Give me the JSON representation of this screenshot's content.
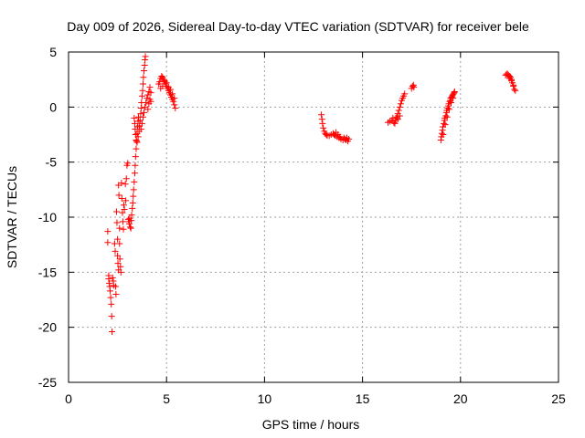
{
  "chart_data": {
    "type": "scatter",
    "title": "Day 009 of 2026, Sidereal Day-to-day VTEC variation (SDTVAR) for receiver bele",
    "xlabel": "GPS time / hours",
    "ylabel": "SDTVAR / TECUs",
    "xlim": [
      0,
      25
    ],
    "ylim": [
      -25,
      5
    ],
    "xticks": [
      0,
      5,
      10,
      15,
      20,
      25
    ],
    "yticks": [
      -25,
      -20,
      -15,
      -10,
      -5,
      0,
      5
    ],
    "xtick_labels": [
      "0",
      "5",
      "10",
      "15",
      "20",
      "25"
    ],
    "ytick_labels": [
      "-25",
      "-20",
      "-15",
      "-10",
      "-5",
      "0",
      "5"
    ],
    "grid": true,
    "marker": "+",
    "colors": {
      "series": "#ff0000",
      "grid": "#a0a0a0",
      "axis": "#000000"
    },
    "series": [
      {
        "name": "SDTVAR",
        "points": [
          [
            2.0,
            -11.3
          ],
          [
            2.0,
            -12.3
          ],
          [
            2.05,
            -15.3
          ],
          [
            2.05,
            -15.6
          ],
          [
            2.08,
            -16.0
          ],
          [
            2.1,
            -16.3
          ],
          [
            2.12,
            -16.7
          ],
          [
            2.15,
            -17.3
          ],
          [
            2.18,
            -17.9
          ],
          [
            2.2,
            -19.0
          ],
          [
            2.22,
            -20.4
          ],
          [
            2.25,
            -15.5
          ],
          [
            2.28,
            -15.8
          ],
          [
            2.3,
            -16.2
          ],
          [
            2.35,
            -12.4
          ],
          [
            2.38,
            -13.1
          ],
          [
            2.4,
            -16.3
          ],
          [
            2.42,
            -17.0
          ],
          [
            2.45,
            -9.5
          ],
          [
            2.47,
            -10.5
          ],
          [
            2.5,
            -12.0
          ],
          [
            2.5,
            -13.5
          ],
          [
            2.52,
            -14.2
          ],
          [
            2.55,
            -14.8
          ],
          [
            2.55,
            -7.1
          ],
          [
            2.57,
            -8.0
          ],
          [
            2.6,
            -11.0
          ],
          [
            2.6,
            -12.4
          ],
          [
            2.62,
            -13.8
          ],
          [
            2.65,
            -14.5
          ],
          [
            2.67,
            -15.0
          ],
          [
            2.7,
            -6.9
          ],
          [
            2.72,
            -8.3
          ],
          [
            2.75,
            -9.6
          ],
          [
            2.77,
            -10.4
          ],
          [
            2.8,
            -11.1
          ],
          [
            2.82,
            -8.9
          ],
          [
            2.85,
            -9.3
          ],
          [
            2.9,
            -7.0
          ],
          [
            2.92,
            -8.5
          ],
          [
            2.95,
            -6.5
          ],
          [
            2.98,
            -5.3
          ],
          [
            3.02,
            -5.1
          ],
          [
            3.05,
            -10.2
          ],
          [
            3.08,
            -10.4
          ],
          [
            3.1,
            -10.6
          ],
          [
            3.12,
            -10.1
          ],
          [
            3.15,
            -10.9
          ],
          [
            3.18,
            -11.0
          ],
          [
            3.2,
            -10.3
          ],
          [
            3.22,
            -9.8
          ],
          [
            3.25,
            -9.2
          ],
          [
            3.28,
            -8.7
          ],
          [
            3.3,
            -8.1
          ],
          [
            3.32,
            -7.5
          ],
          [
            3.35,
            -6.8
          ],
          [
            3.38,
            -6.0
          ],
          [
            3.4,
            -5.3
          ],
          [
            3.42,
            -4.5
          ],
          [
            3.45,
            -3.8
          ],
          [
            3.47,
            -3.1
          ],
          [
            3.5,
            -2.4
          ],
          [
            3.52,
            -1.8
          ],
          [
            3.55,
            -1.3
          ],
          [
            3.57,
            -0.9
          ],
          [
            3.35,
            -1.0
          ],
          [
            3.38,
            -1.5
          ],
          [
            3.4,
            -2.0
          ],
          [
            3.42,
            -2.5
          ],
          [
            3.45,
            -3.0
          ],
          [
            3.5,
            -3.2
          ],
          [
            3.55,
            -2.7
          ],
          [
            3.6,
            -2.2
          ],
          [
            3.62,
            -1.7
          ],
          [
            3.65,
            -1.2
          ],
          [
            3.68,
            -0.6
          ],
          [
            3.7,
            -0.1
          ],
          [
            3.72,
            0.4
          ],
          [
            3.75,
            1.0
          ],
          [
            3.78,
            1.5
          ],
          [
            3.8,
            2.1
          ],
          [
            3.82,
            2.7
          ],
          [
            3.85,
            3.3
          ],
          [
            3.88,
            3.8
          ],
          [
            3.9,
            4.3
          ],
          [
            3.92,
            4.6
          ],
          [
            3.7,
            -2.0
          ],
          [
            3.75,
            -1.5
          ],
          [
            3.8,
            -0.9
          ],
          [
            3.85,
            -0.5
          ],
          [
            3.9,
            0.0
          ],
          [
            3.95,
            0.4
          ],
          [
            4.0,
            0.8
          ],
          [
            4.05,
            1.1
          ],
          [
            4.1,
            1.4
          ],
          [
            4.15,
            1.8
          ],
          [
            4.2,
            1.3
          ],
          [
            4.05,
            -0.2
          ],
          [
            4.1,
            0.3
          ],
          [
            4.15,
            0.7
          ],
          [
            4.2,
            0.5
          ],
          [
            4.6,
            2.1
          ],
          [
            4.65,
            2.3
          ],
          [
            4.7,
            2.6
          ],
          [
            4.75,
            2.8
          ],
          [
            4.8,
            2.7
          ],
          [
            4.85,
            2.5
          ],
          [
            4.9,
            2.3
          ],
          [
            4.95,
            2.1
          ],
          [
            5.0,
            1.9
          ],
          [
            5.05,
            1.7
          ],
          [
            5.1,
            1.5
          ],
          [
            5.15,
            1.3
          ],
          [
            5.2,
            1.1
          ],
          [
            5.25,
            0.9
          ],
          [
            5.3,
            0.7
          ],
          [
            5.35,
            0.5
          ],
          [
            5.4,
            0.2
          ],
          [
            5.45,
            -0.1
          ],
          [
            4.7,
            1.7
          ],
          [
            4.8,
            1.9
          ],
          [
            4.9,
            2.4
          ],
          [
            5.0,
            2.2
          ],
          [
            5.1,
            1.8
          ],
          [
            5.2,
            1.6
          ],
          [
            5.3,
            1.2
          ],
          [
            5.4,
            0.8
          ],
          [
            12.9,
            -0.7
          ],
          [
            12.93,
            -1.1
          ],
          [
            12.96,
            -1.5
          ],
          [
            13.0,
            -1.9
          ],
          [
            13.05,
            -2.2
          ],
          [
            13.1,
            -2.4
          ],
          [
            13.15,
            -2.5
          ],
          [
            13.2,
            -2.6
          ],
          [
            13.3,
            -2.6
          ],
          [
            13.4,
            -2.5
          ],
          [
            13.5,
            -2.4
          ],
          [
            13.55,
            -2.5
          ],
          [
            13.6,
            -2.6
          ],
          [
            13.7,
            -2.7
          ],
          [
            13.8,
            -2.8
          ],
          [
            13.9,
            -2.9
          ],
          [
            14.0,
            -3.0
          ],
          [
            14.1,
            -2.9
          ],
          [
            14.2,
            -2.8
          ],
          [
            14.3,
            -2.9
          ],
          [
            13.65,
            -2.3
          ],
          [
            13.75,
            -2.5
          ],
          [
            13.85,
            -2.7
          ],
          [
            14.05,
            -2.8
          ],
          [
            14.15,
            -3.0
          ],
          [
            14.25,
            -3.1
          ],
          [
            16.3,
            -1.4
          ],
          [
            16.4,
            -1.3
          ],
          [
            16.5,
            -1.2
          ],
          [
            16.55,
            -1.0
          ],
          [
            16.6,
            -1.4
          ],
          [
            16.65,
            -1.5
          ],
          [
            16.7,
            -1.2
          ],
          [
            16.75,
            -0.9
          ],
          [
            16.8,
            -0.6
          ],
          [
            16.85,
            -0.3
          ],
          [
            16.9,
            0.0
          ],
          [
            16.95,
            0.3
          ],
          [
            17.0,
            0.6
          ],
          [
            17.05,
            0.8
          ],
          [
            17.1,
            1.0
          ],
          [
            17.15,
            1.2
          ],
          [
            16.7,
            -1.0
          ],
          [
            16.8,
            -1.1
          ],
          [
            16.9,
            -0.8
          ],
          [
            17.5,
            1.7
          ],
          [
            17.55,
            1.9
          ],
          [
            17.6,
            2.0
          ],
          [
            17.62,
            1.8
          ],
          [
            19.0,
            -3.0
          ],
          [
            19.02,
            -2.7
          ],
          [
            19.05,
            -2.4
          ],
          [
            19.08,
            -2.1
          ],
          [
            19.1,
            -1.8
          ],
          [
            19.12,
            -2.5
          ],
          [
            19.15,
            -1.5
          ],
          [
            19.18,
            -1.2
          ],
          [
            19.2,
            -1.0
          ],
          [
            19.22,
            -1.6
          ],
          [
            19.25,
            -0.8
          ],
          [
            19.28,
            -0.5
          ],
          [
            19.3,
            -0.3
          ],
          [
            19.32,
            -0.9
          ],
          [
            19.35,
            -0.1
          ],
          [
            19.38,
            0.1
          ],
          [
            19.4,
            0.3
          ],
          [
            19.42,
            -0.2
          ],
          [
            19.45,
            0.5
          ],
          [
            19.48,
            0.6
          ],
          [
            19.5,
            0.8
          ],
          [
            19.52,
            0.4
          ],
          [
            19.55,
            0.9
          ],
          [
            19.58,
            1.0
          ],
          [
            19.6,
            1.1
          ],
          [
            19.62,
            0.8
          ],
          [
            19.65,
            1.2
          ],
          [
            19.68,
            1.3
          ],
          [
            19.7,
            1.4
          ],
          [
            22.3,
            2.9
          ],
          [
            22.35,
            3.0
          ],
          [
            22.4,
            3.0
          ],
          [
            22.45,
            2.9
          ],
          [
            22.5,
            2.8
          ],
          [
            22.55,
            2.7
          ],
          [
            22.6,
            2.5
          ],
          [
            22.65,
            2.2
          ],
          [
            22.7,
            1.9
          ],
          [
            22.75,
            1.6
          ],
          [
            22.8,
            1.5
          ],
          [
            22.5,
            2.6
          ],
          [
            22.6,
            2.4
          ],
          [
            22.7,
            2.0
          ]
        ]
      }
    ]
  }
}
